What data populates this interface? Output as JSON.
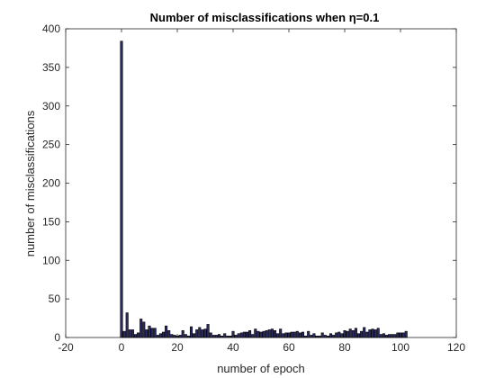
{
  "chart_data": {
    "type": "bar",
    "title": "Number of misclassifications when η=0.1",
    "xlabel": "number of epoch",
    "ylabel": "number of misclassifications",
    "xlim": [
      -20,
      120
    ],
    "ylim": [
      0,
      400
    ],
    "xticks": [
      -20,
      0,
      20,
      40,
      60,
      80,
      100,
      120
    ],
    "yticks": [
      0,
      50,
      100,
      150,
      200,
      250,
      300,
      350,
      400
    ],
    "grid": false,
    "legend": "none",
    "bar_color": "#2b2b63",
    "x": [
      0,
      1,
      2,
      3,
      4,
      5,
      6,
      7,
      8,
      9,
      10,
      11,
      12,
      13,
      14,
      15,
      16,
      17,
      18,
      19,
      20,
      21,
      22,
      23,
      24,
      25,
      26,
      27,
      28,
      29,
      30,
      31,
      32,
      33,
      34,
      35,
      36,
      37,
      38,
      39,
      40,
      41,
      42,
      43,
      44,
      45,
      46,
      47,
      48,
      49,
      50,
      51,
      52,
      53,
      54,
      55,
      56,
      57,
      58,
      59,
      60,
      61,
      62,
      63,
      64,
      65,
      66,
      67,
      68,
      69,
      70,
      71,
      72,
      73,
      74,
      75,
      76,
      77,
      78,
      79,
      80,
      81,
      82,
      83,
      84,
      85,
      86,
      87,
      88,
      89,
      90,
      91,
      92,
      93,
      94,
      95,
      96,
      97,
      98,
      99,
      100,
      101,
      102
    ],
    "values": [
      384,
      8,
      32,
      10,
      10,
      4,
      6,
      24,
      20,
      10,
      15,
      12,
      12,
      3,
      5,
      7,
      15,
      9,
      4,
      3,
      2,
      3,
      9,
      4,
      2,
      14,
      5,
      10,
      13,
      10,
      11,
      17,
      6,
      3,
      3,
      4,
      2,
      5,
      2,
      2,
      8,
      3,
      5,
      6,
      7,
      7,
      9,
      4,
      11,
      8,
      7,
      8,
      9,
      10,
      11,
      9,
      5,
      11,
      5,
      6,
      6,
      7,
      7,
      8,
      6,
      7,
      2,
      8,
      3,
      5,
      2,
      2,
      6,
      3,
      2,
      5,
      3,
      6,
      7,
      5,
      9,
      8,
      11,
      9,
      12,
      5,
      8,
      13,
      7,
      10,
      11,
      10,
      12,
      4,
      5,
      3,
      4,
      4,
      4,
      6,
      6,
      6,
      8
    ]
  }
}
